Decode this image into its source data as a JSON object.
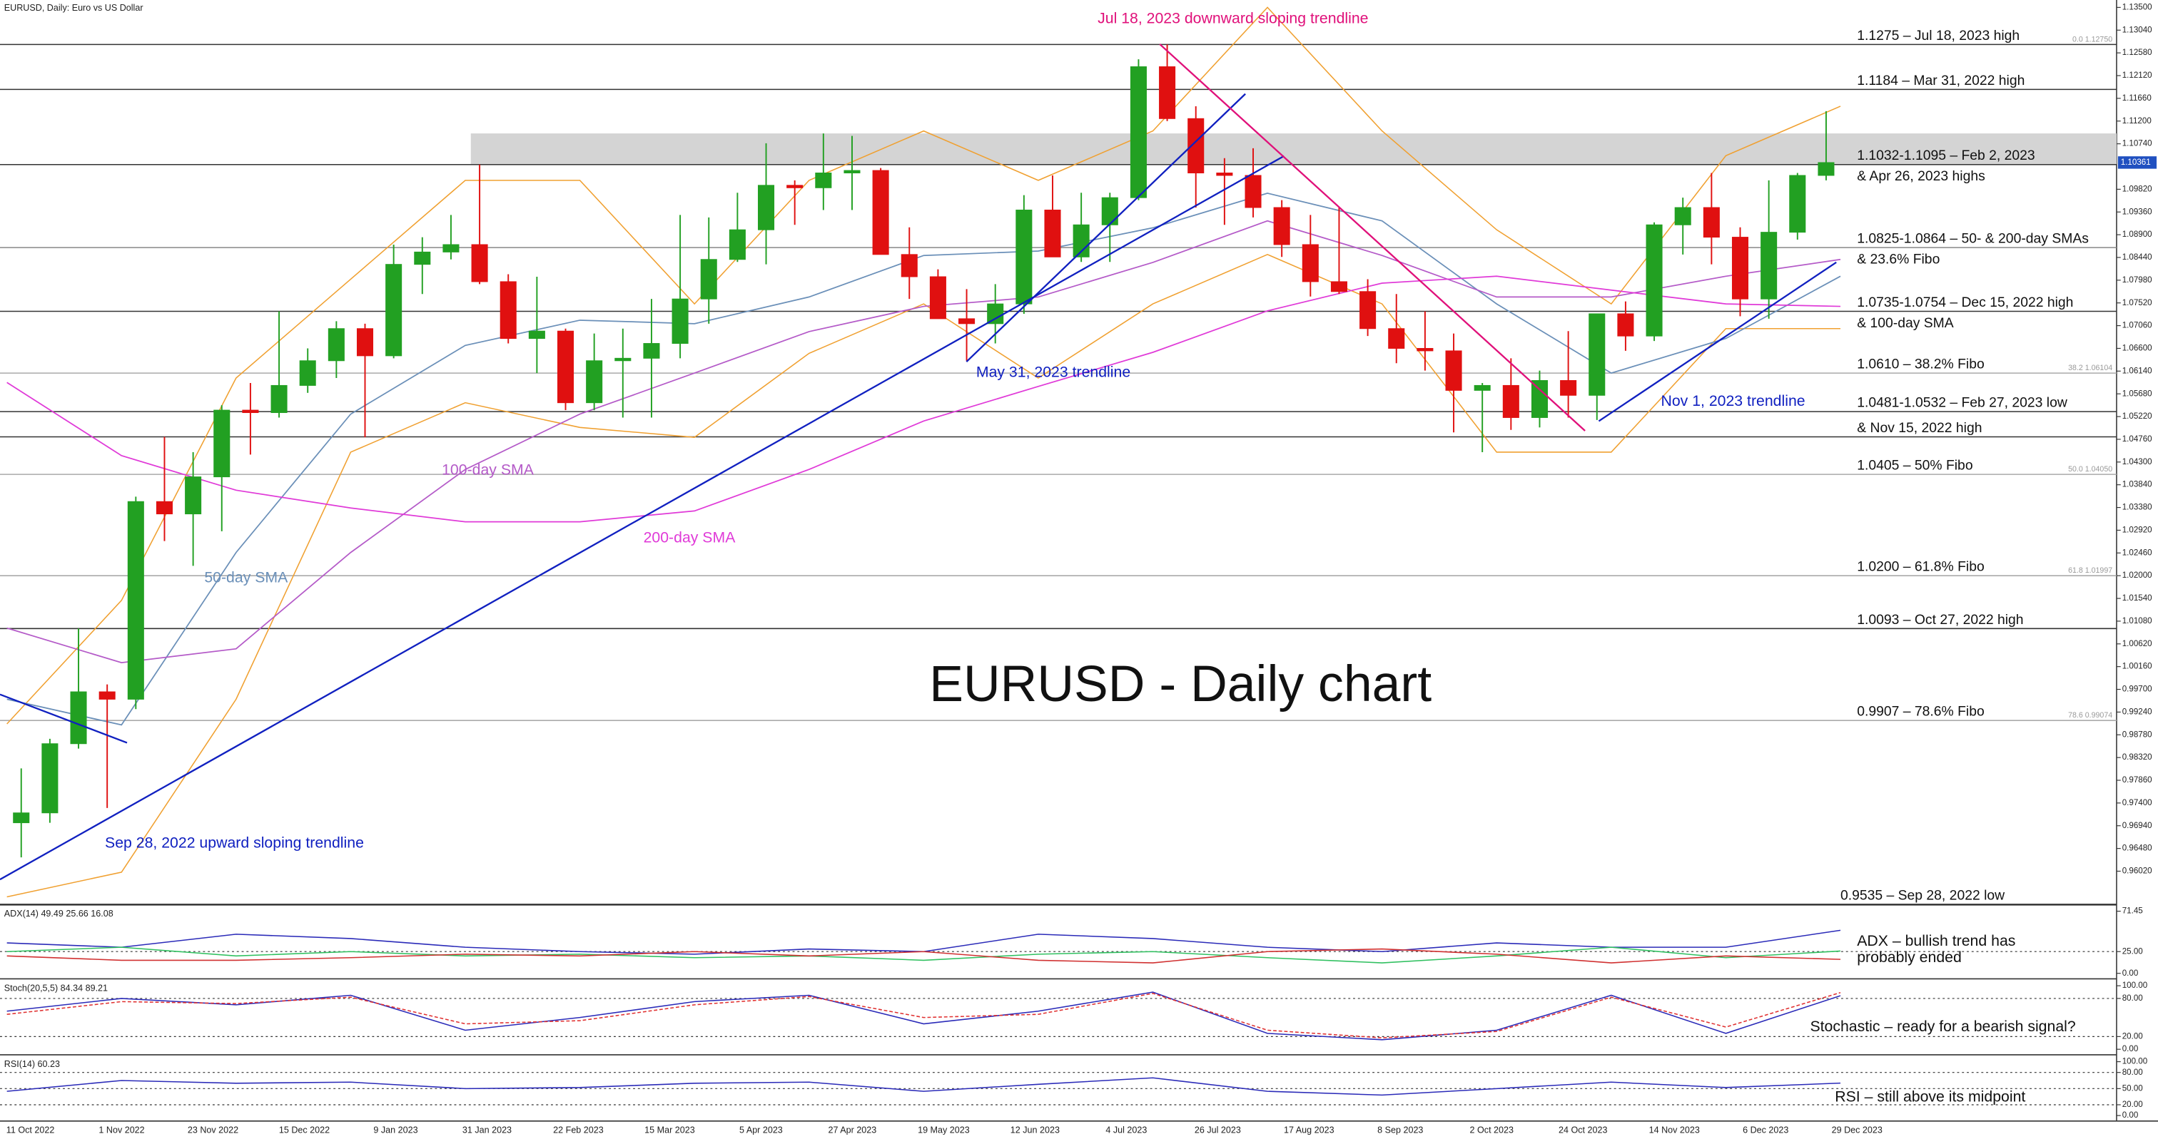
{
  "header": "EURUSD, Daily:  Euro vs US Dollar",
  "chart_data": [
    {
      "type": "candlestick",
      "title": "EURUSD - Daily chart",
      "up_color": "#22a022",
      "down_color": "#e01010",
      "ylim": [
        0.9535,
        1.1365
      ],
      "yticks": [
        {
          "value": 1.135,
          "label": "1.13500"
        },
        {
          "value": 1.1304,
          "label": "1.13040"
        },
        {
          "value": 1.1258,
          "label": "1.12580"
        },
        {
          "value": 1.1212,
          "label": "1.12120"
        },
        {
          "value": 1.1166,
          "label": "1.11660"
        },
        {
          "value": 1.112,
          "label": "1.11200"
        },
        {
          "value": 1.1074,
          "label": "1.10740"
        },
        {
          "value": 1.0982,
          "label": "1.09820"
        },
        {
          "value": 1.0936,
          "label": "1.09360"
        },
        {
          "value": 1.089,
          "label": "1.08900"
        },
        {
          "value": 1.0844,
          "label": "1.08440"
        },
        {
          "value": 1.0798,
          "label": "1.07980"
        },
        {
          "value": 1.0752,
          "label": "1.07520"
        },
        {
          "value": 1.0706,
          "label": "1.07060"
        },
        {
          "value": 1.066,
          "label": "1.06600"
        },
        {
          "value": 1.0614,
          "label": "1.06140"
        },
        {
          "value": 1.0568,
          "label": "1.05680"
        },
        {
          "value": 1.0522,
          "label": "1.05220"
        },
        {
          "value": 1.0476,
          "label": "1.04760"
        },
        {
          "value": 1.043,
          "label": "1.04300"
        },
        {
          "value": 1.0384,
          "label": "1.03840"
        },
        {
          "value": 1.0338,
          "label": "1.03380"
        },
        {
          "value": 1.0292,
          "label": "1.02920"
        },
        {
          "value": 1.0246,
          "label": "1.02460"
        },
        {
          "value": 1.02,
          "label": "1.02000"
        },
        {
          "value": 1.0154,
          "label": "1.01540"
        },
        {
          "value": 1.0108,
          "label": "1.01080"
        },
        {
          "value": 1.0062,
          "label": "1.00620"
        },
        {
          "value": 1.0016,
          "label": "1.00160"
        },
        {
          "value": 0.997,
          "label": "0.99700"
        },
        {
          "value": 0.9924,
          "label": "0.99240"
        },
        {
          "value": 0.9878,
          "label": "0.98780"
        },
        {
          "value": 0.9832,
          "label": "0.98320"
        },
        {
          "value": 0.9786,
          "label": "0.97860"
        },
        {
          "value": 0.974,
          "label": "0.97400"
        },
        {
          "value": 0.9694,
          "label": "0.96940"
        },
        {
          "value": 0.9648,
          "label": "0.96480"
        },
        {
          "value": 0.9602,
          "label": "0.96020"
        }
      ],
      "x_labels": [
        "11 Oct 2022",
        "1 Nov 2022",
        "23 Nov 2022",
        "15 Dec 2022",
        "9 Jan 2023",
        "31 Jan 2023",
        "22 Feb 2023",
        "15 Mar 2023",
        "5 Apr 2023",
        "27 Apr 2023",
        "19 May 2023",
        "12 Jun 2023",
        "4 Jul 2023",
        "26 Jul 2023",
        "17 Aug 2023",
        "8 Sep 2023",
        "2 Oct 2023",
        "24 Oct 2023",
        "14 Nov 2023",
        "6 Dec 2023",
        "29 Dec 2023"
      ],
      "open": [
        0.97,
        0.972,
        0.986,
        0.9965,
        0.995,
        1.035,
        1.0325,
        1.04,
        1.0535,
        1.053,
        1.0585,
        1.0635,
        1.07,
        1.0645,
        1.083,
        1.0855,
        1.087,
        1.0795,
        1.068,
        1.0695,
        1.055,
        1.0635,
        1.064,
        1.067,
        1.076,
        1.084,
        1.09,
        1.099,
        1.0985,
        1.1015,
        1.102,
        1.085,
        1.0805,
        1.072,
        1.071,
        1.075,
        1.094,
        1.0845,
        1.091,
        1.0965,
        1.123,
        1.1125,
        1.1015,
        1.101,
        1.0945,
        1.087,
        1.0795,
        1.0775,
        1.07,
        1.066,
        1.0655,
        1.0575,
        1.0585,
        1.052,
        1.0595,
        1.0565,
        1.073,
        1.0685,
        1.091,
        1.0945,
        1.0885,
        1.076,
        1.0895,
        1.101
      ],
      "high": [
        0.981,
        0.987,
        1.0093,
        0.998,
        1.036,
        1.0481,
        1.045,
        1.0545,
        1.059,
        1.0735,
        1.066,
        1.0715,
        1.071,
        1.087,
        1.0885,
        1.093,
        1.1032,
        1.081,
        1.0805,
        1.07,
        1.069,
        1.07,
        1.076,
        1.093,
        1.0925,
        1.0975,
        1.1075,
        1.1,
        1.1095,
        1.109,
        1.1025,
        1.0905,
        1.082,
        1.078,
        1.079,
        1.097,
        1.101,
        1.0975,
        1.0975,
        1.1245,
        1.1275,
        1.115,
        1.1045,
        1.1065,
        1.096,
        1.093,
        1.0945,
        1.08,
        1.077,
        1.0735,
        1.069,
        1.059,
        1.064,
        1.0615,
        1.0695,
        1.0725,
        1.0755,
        1.0915,
        1.0965,
        1.1015,
        1.0905,
        1.1,
        1.1015,
        1.114
      ],
      "low": [
        0.963,
        0.97,
        0.985,
        0.973,
        0.993,
        1.027,
        1.022,
        1.029,
        1.0445,
        1.052,
        1.057,
        1.06,
        1.048,
        1.064,
        1.077,
        1.084,
        1.079,
        1.067,
        1.061,
        1.0535,
        1.0535,
        1.052,
        1.052,
        1.064,
        1.071,
        1.0835,
        1.083,
        1.091,
        1.094,
        1.094,
        1.085,
        1.076,
        1.072,
        1.0635,
        1.067,
        1.073,
        1.0845,
        1.0835,
        1.0835,
        1.096,
        1.112,
        1.0945,
        1.091,
        1.0925,
        1.0845,
        1.0765,
        1.077,
        1.0685,
        1.063,
        1.0615,
        1.049,
        1.045,
        1.0495,
        1.05,
        1.052,
        1.0515,
        1.0655,
        1.0675,
        1.085,
        1.083,
        1.0725,
        1.072,
        1.088,
        1.1
      ],
      "close": [
        0.972,
        0.986,
        0.9965,
        0.995,
        1.035,
        1.0325,
        1.04,
        1.0535,
        1.053,
        1.0585,
        1.0635,
        1.07,
        1.0645,
        1.083,
        1.0855,
        1.087,
        1.0795,
        1.068,
        1.0695,
        1.055,
        1.0635,
        1.064,
        1.067,
        1.076,
        1.084,
        1.09,
        1.099,
        1.0985,
        1.1015,
        1.102,
        1.085,
        1.0805,
        1.072,
        1.071,
        1.075,
        1.094,
        1.0845,
        1.091,
        1.0965,
        1.123,
        1.1125,
        1.1015,
        1.101,
        1.0945,
        1.087,
        1.0795,
        1.0775,
        1.07,
        1.066,
        1.0655,
        1.0575,
        1.0585,
        1.052,
        1.0595,
        1.0565,
        1.073,
        1.0685,
        1.091,
        1.0945,
        1.0885,
        1.076,
        1.0895,
        1.101,
        1.1036
      ],
      "series": [
        {
          "name": "50-day SMA",
          "color": "#6a8fb8",
          "values": [
            0.995,
            0.9898,
            1.0247,
            1.0527,
            1.0666,
            1.0717,
            1.071,
            1.0764,
            1.0848,
            1.0857,
            1.0904,
            1.0974,
            1.0918,
            1.075,
            1.061,
            1.068,
            1.0806
          ]
        },
        {
          "name": "100-day SMA",
          "color": "#b45ac8",
          "values": [
            1.0094,
            1.0024,
            1.0052,
            1.0247,
            1.0415,
            1.0527,
            1.061,
            1.0694,
            1.0745,
            1.0764,
            1.0834,
            1.0918,
            1.0848,
            1.0764,
            1.0764,
            1.0806,
            1.084
          ]
        },
        {
          "name": "200-day SMA",
          "color": "#e03ad8",
          "values": [
            1.0591,
            1.0443,
            1.0373,
            1.0337,
            1.0309,
            1.0309,
            1.0331,
            1.0415,
            1.0513,
            1.0583,
            1.0652,
            1.0736,
            1.0792,
            1.0806,
            1.0778,
            1.075,
            1.0745
          ]
        }
      ],
      "bands": {
        "color": "#f0a030",
        "upper": [
          0.99,
          1.015,
          1.06,
          1.08,
          1.1,
          1.1,
          1.075,
          1.1,
          1.11,
          1.1,
          1.11,
          1.135,
          1.11,
          1.09,
          1.075,
          1.105,
          1.115
        ],
        "lower": [
          0.955,
          0.96,
          0.995,
          1.045,
          1.055,
          1.05,
          1.048,
          1.065,
          1.075,
          1.06,
          1.075,
          1.085,
          1.075,
          1.045,
          1.045,
          1.07,
          1.07
        ]
      },
      "zone": [
        1.1032,
        1.1095
      ],
      "zone_color": "#d4d4d4",
      "levels": [
        {
          "value": 1.1275,
          "label": "1.1275 – Jul 18, 2023 high",
          "tag": "0.0 1.12750",
          "color": "#333333"
        },
        {
          "value": 1.1184,
          "label": "1.1184 – Mar 31, 2022 high",
          "color": "#333333"
        },
        {
          "value": 1.1032,
          "label": "1.1032-1.1095 – Feb 2, 2023",
          "label2": "& Apr 26, 2023 highs",
          "color": "#333333"
        },
        {
          "value": 1.0864,
          "label": "1.0825-1.0864 – 50- & 200-day SMAs",
          "label2": "& 23.6% Fibo",
          "color": "#888888"
        },
        {
          "value": 1.0735,
          "label": "1.0735-1.0754 – Dec 15, 2022 high",
          "label2": "& 100-day SMA",
          "color": "#333333"
        },
        {
          "value": 1.061,
          "label": "1.0610 – 38.2% Fibo",
          "tag": "38.2 1.06104",
          "color": "#aaaaaa"
        },
        {
          "value": 1.0532,
          "label": "1.0481-1.0532 – Feb 27, 2023 low",
          "color": "#333333"
        },
        {
          "value": 1.0481,
          "label": "& Nov 15, 2022 high",
          "color": "#333333"
        },
        {
          "value": 1.0405,
          "label": "1.0405 – 50% Fibo",
          "tag": "50.0 1.04050",
          "color": "#aaaaaa"
        },
        {
          "value": 1.02,
          "label": "1.0200 – 61.8% Fibo",
          "tag": "61.8 1.01997",
          "color": "#aaaaaa"
        },
        {
          "value": 1.0093,
          "label": "1.0093 – Oct 27, 2022 high",
          "color": "#333333"
        },
        {
          "value": 0.9907,
          "label": "0.9907 – 78.6% Fibo",
          "tag": "78.6 0.99074",
          "color": "#aaaaaa"
        },
        {
          "value": 0.9535,
          "label": "0.9535 – Sep 28, 2022 low",
          "color": "#333333"
        }
      ],
      "annotations": [
        {
          "text": "Jul 18, 2023 downward sloping trendline",
          "color": "#e0107a"
        },
        {
          "text": "May 31, 2023 trendline",
          "color": "#1020c0"
        },
        {
          "text": "Nov 1, 2023 trendline",
          "color": "#1020c0"
        },
        {
          "text": "Sep 28, 2022 upward sloping trendline",
          "color": "#1020c0"
        }
      ],
      "last_price": 1.10361,
      "last_price_color": "#2050c0"
    },
    {
      "type": "line",
      "title": "ADX(14) 49.49 25.66 16.08",
      "ylim": [
        0,
        71.45
      ],
      "yticks": [
        71.45,
        {
          "value": 25,
          "label": "25.00"
        },
        {
          "value": 0,
          "label": "0.00"
        }
      ],
      "series": [
        {
          "color": "#2a2ab8",
          "values": [
            35,
            30,
            45,
            40,
            30,
            25,
            22,
            28,
            25,
            45,
            40,
            30,
            25,
            35,
            30,
            30,
            49.49
          ]
        },
        {
          "color": "#30c060",
          "values": [
            25,
            30,
            20,
            25,
            20,
            22,
            18,
            20,
            15,
            22,
            25,
            18,
            12,
            20,
            30,
            18,
            25.66
          ]
        },
        {
          "color": "#d03030",
          "values": [
            20,
            15,
            15,
            18,
            22,
            20,
            25,
            20,
            25,
            15,
            12,
            25,
            28,
            22,
            12,
            20,
            16.08
          ]
        }
      ],
      "annotations": [
        "ADX – bullish trend has",
        "probably ended"
      ]
    },
    {
      "type": "line",
      "title": "Stoch(20,5,5) 84.34 89.21",
      "ylim": [
        0,
        100
      ],
      "yticks": [
        {
          "value": 100,
          "label": "100.00"
        },
        {
          "value": 80,
          "label": "80.00"
        },
        {
          "value": 20,
          "label": "20.00"
        },
        {
          "value": 0,
          "label": "0.00"
        }
      ],
      "series": [
        {
          "color": "#2a2ab8",
          "values": [
            60,
            80,
            70,
            85,
            30,
            50,
            75,
            85,
            40,
            60,
            90,
            25,
            15,
            30,
            85,
            25,
            84.34
          ]
        },
        {
          "color": "#e03030",
          "dash": true,
          "values": [
            55,
            75,
            72,
            82,
            40,
            45,
            70,
            83,
            50,
            55,
            88,
            30,
            18,
            28,
            82,
            35,
            89.21
          ]
        }
      ],
      "annotations": [
        "Stochastic – ready for a bearish signal?"
      ]
    },
    {
      "type": "line",
      "title": "RSI(14) 60.23",
      "ylim": [
        0,
        100
      ],
      "yticks": [
        {
          "value": 100,
          "label": "100.00"
        },
        {
          "value": 80,
          "label": "80.00"
        },
        {
          "value": 50,
          "label": "50.00"
        },
        {
          "value": 20,
          "label": "20.00"
        },
        {
          "value": 0,
          "label": "0.00"
        }
      ],
      "series": [
        {
          "color": "#2a2ab8",
          "values": [
            45,
            65,
            60,
            62,
            50,
            52,
            60,
            62,
            45,
            58,
            70,
            45,
            38,
            50,
            62,
            52,
            60.23
          ]
        }
      ],
      "annotations": [
        "RSI – still above its midpoint"
      ]
    }
  ]
}
